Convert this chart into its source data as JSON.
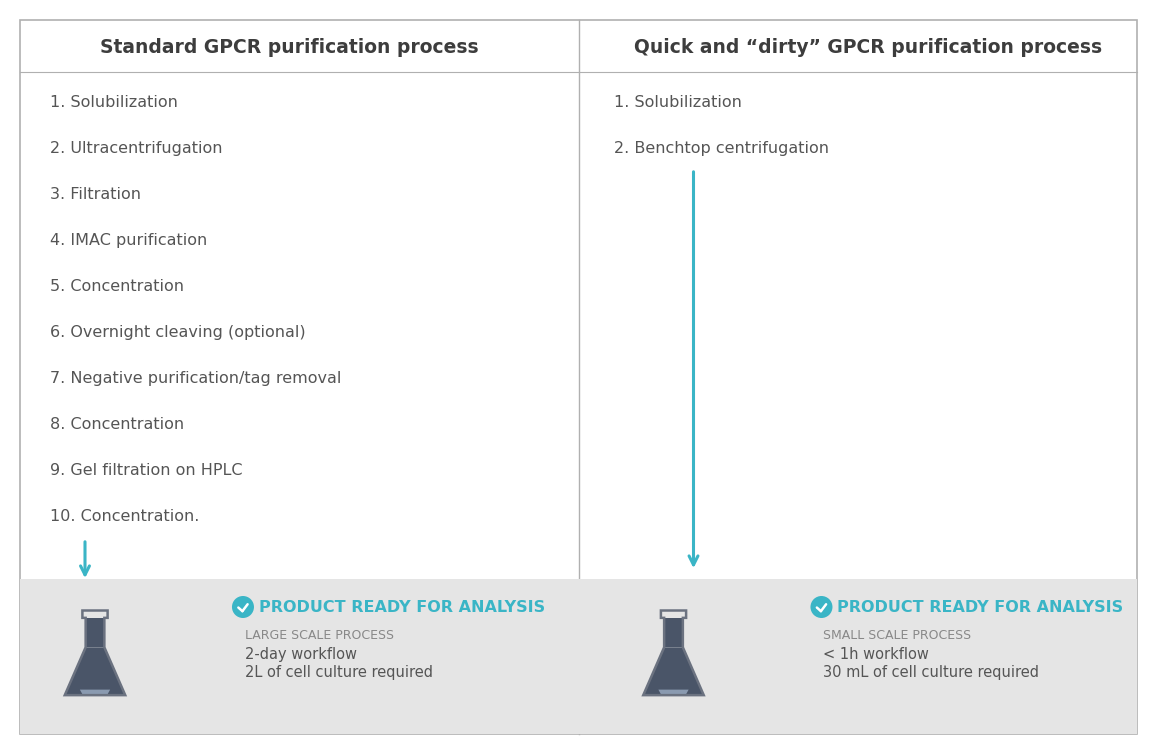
{
  "bg_color": "#ffffff",
  "panel_border_color": "#b0b0b0",
  "divider_color": "#b0b0b0",
  "footer_bg": "#e5e5e5",
  "arrow_color": "#3ab5c6",
  "text_color": "#555555",
  "title_color": "#3d3d3d",
  "cyan_color": "#3ab5c6",
  "flask_fill_color": "#4a5568",
  "flask_outline_color": "#6b7280",
  "left_title": "Standard GPCR purification process",
  "right_title": "Quick and “dirty” GPCR purification process",
  "left_steps": [
    "1. Solubilization",
    "2. Ultracentrifugation",
    "3. Filtration",
    "4. IMAC purification",
    "5. Concentration",
    "6. Overnight cleaving (optional)",
    "7. Negative purification/tag removal",
    "8. Concentration",
    "9. Gel filtration on HPLC",
    "10. Concentration."
  ],
  "right_steps": [
    "1. Solubilization",
    "2. Benchtop centrifugation"
  ],
  "left_footer_title": "PRODUCT READY FOR ANALYSIS",
  "left_footer_sub1": "LARGE SCALE PROCESS",
  "left_footer_sub2": "2-day workflow",
  "left_footer_sub3": "2L of cell culture required",
  "right_footer_title": "PRODUCT READY FOR ANALYSIS",
  "right_footer_sub1": "SMALL SCALE PROCESS",
  "right_footer_sub2": "< 1h workflow",
  "right_footer_sub3": "30 mL of cell culture required",
  "fig_width": 11.57,
  "fig_height": 7.54,
  "dpi": 100
}
